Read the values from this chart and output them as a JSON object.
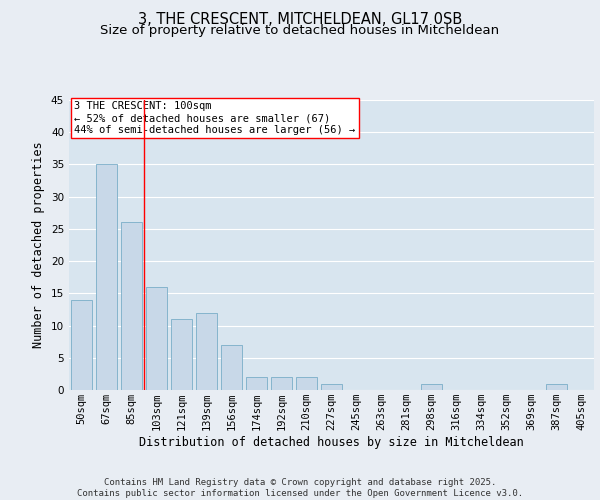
{
  "title1": "3, THE CRESCENT, MITCHELDEAN, GL17 0SB",
  "title2": "Size of property relative to detached houses in Mitcheldean",
  "xlabel": "Distribution of detached houses by size in Mitcheldean",
  "ylabel": "Number of detached properties",
  "categories": [
    "50sqm",
    "67sqm",
    "85sqm",
    "103sqm",
    "121sqm",
    "139sqm",
    "156sqm",
    "174sqm",
    "192sqm",
    "210sqm",
    "227sqm",
    "245sqm",
    "263sqm",
    "281sqm",
    "298sqm",
    "316sqm",
    "334sqm",
    "352sqm",
    "369sqm",
    "387sqm",
    "405sqm"
  ],
  "values": [
    14,
    35,
    26,
    16,
    11,
    12,
    7,
    2,
    2,
    2,
    1,
    0,
    0,
    0,
    1,
    0,
    0,
    0,
    0,
    1,
    0
  ],
  "bar_color": "#c8d8e8",
  "bar_edge_color": "#7aaec8",
  "vline_x": 2.5,
  "vline_color": "red",
  "annotation_text": "3 THE CRESCENT: 100sqm\n← 52% of detached houses are smaller (67)\n44% of semi-detached houses are larger (56) →",
  "annotation_box_color": "white",
  "annotation_box_edge": "red",
  "ylim": [
    0,
    45
  ],
  "yticks": [
    0,
    5,
    10,
    15,
    20,
    25,
    30,
    35,
    40,
    45
  ],
  "background_color": "#e8edf3",
  "plot_bg_color": "#d8e5ef",
  "grid_color": "white",
  "footer": "Contains HM Land Registry data © Crown copyright and database right 2025.\nContains public sector information licensed under the Open Government Licence v3.0.",
  "title_fontsize": 10.5,
  "subtitle_fontsize": 9.5,
  "axis_label_fontsize": 8.5,
  "tick_fontsize": 7.5,
  "annotation_fontsize": 7.5,
  "footer_fontsize": 6.5
}
